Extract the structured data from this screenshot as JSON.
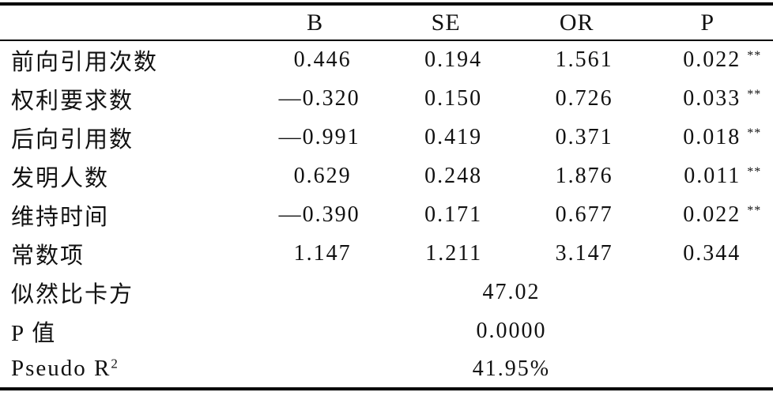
{
  "header": {
    "stub": "",
    "b": "B",
    "se": "SE",
    "or": "OR",
    "p": "P"
  },
  "rows": [
    {
      "label": "前向引用次数",
      "b": "0.446",
      "se": "0.194",
      "or": "1.561",
      "p": "0.022",
      "sig": "**"
    },
    {
      "label": "权利要求数",
      "b": "—0.320",
      "se": "0.150",
      "or": "0.726",
      "p": "0.033",
      "sig": "**"
    },
    {
      "label": "后向引用数",
      "b": "—0.991",
      "se": "0.419",
      "or": "0.371",
      "p": "0.018",
      "sig": "**"
    },
    {
      "label": "发明人数",
      "b": "0.629",
      "se": "0.248",
      "or": "1.876",
      "p": "0.011",
      "sig": "**"
    },
    {
      "label": "维持时间",
      "b": "—0.390",
      "se": "0.171",
      "or": "0.677",
      "p": "0.022",
      "sig": "**"
    },
    {
      "label": "常数项",
      "b": "1.147",
      "se": "1.211",
      "or": "3.147",
      "p": "0.344",
      "sig": ""
    }
  ],
  "summary": [
    {
      "label": "似然比卡方",
      "label_sup": "",
      "value": "47.02"
    },
    {
      "label": "P 值",
      "label_sup": "",
      "value": "0.0000"
    },
    {
      "label": "Pseudo R",
      "label_sup": "2",
      "value": "41.95%"
    }
  ],
  "colors": {
    "text": "#111111",
    "rule": "#000000",
    "background": "#ffffff"
  }
}
